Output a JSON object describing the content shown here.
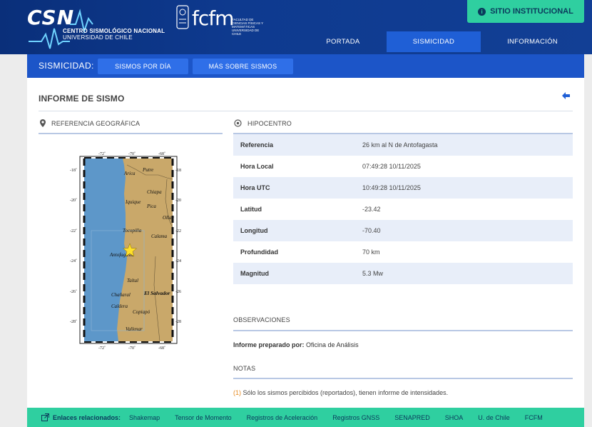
{
  "header": {
    "logo_text": "CSN",
    "logo_line1": "CENTRO SISMOLÓGICO NACIONAL",
    "logo_line2": "UNIVERSIDAD DE CHILE",
    "fcfm_text": "fcfm",
    "fcfm_subtitle": "FACULTAD DE CIENCIAS FÍSICAS Y MATEMÁTICAS UNIVERSIDAD DE CHILE",
    "institutional_button": "SITIO INSTITUCIONAL",
    "nav": [
      {
        "label": "PORTADA",
        "active": false
      },
      {
        "label": "SISMICIDAD",
        "active": true
      },
      {
        "label": "INFORMACIÓN",
        "active": false
      }
    ]
  },
  "subnav": {
    "label": "SISMICIDAD:",
    "buttons": [
      "SISMOS POR DÍA",
      "MÁS SOBRE SISMOS"
    ]
  },
  "report": {
    "title": "INFORME DE SISMO",
    "geo_ref_heading": "REFERENCIA GEOGRÁFICA",
    "hypocenter_heading": "HIPOCENTRO",
    "rows": [
      {
        "key": "Referencia",
        "value": "26 km al N de Antofagasta"
      },
      {
        "key": "Hora Local",
        "value": "07:49:28 10/11/2025"
      },
      {
        "key": "Hora UTC",
        "value": "10:49:28 10/11/2025"
      },
      {
        "key": "Latitud",
        "value": "-23.42"
      },
      {
        "key": "Longitud",
        "value": "-70.40"
      },
      {
        "key": "Profundidad",
        "value": "70 km"
      },
      {
        "key": "Magnitud",
        "value": "5.3 Mw"
      }
    ],
    "observations_heading": "OBSERVACIONES",
    "prepared_label": "Informe preparado por:",
    "prepared_value": "Oficina de Análisis",
    "notes_heading": "NOTAS",
    "note_number": "(1)",
    "note_text": "Sólo los sismos percibidos (reportados), tienen informe de intensidades."
  },
  "map": {
    "lon_ticks": [
      "-72˚",
      "-70˚",
      "-68˚"
    ],
    "lat_ticks": [
      "-18˚",
      "-20˚",
      "-22˚",
      "-24˚",
      "-26˚",
      "-28˚"
    ],
    "places": [
      "Arica",
      "Putre",
      "Chiapa",
      "Iquique",
      "Pica",
      "Ollag",
      "Tocopilla",
      "Calama",
      "Antofagasta",
      "Taltal",
      "Chañaral",
      "El Salvador",
      "Caldera",
      "Copiapó",
      "Vallenar"
    ],
    "ocean_color": "#5d97c9",
    "land_color": "#c9a86a",
    "epicenter_color": "#ffe02a"
  },
  "footer": {
    "label": "Enlaces relacionados:",
    "links": [
      "Shakemap",
      "Tensor de Momento",
      "Registros de Aceleración",
      "Registros GNSS",
      "SENAPRED",
      "SHOA",
      "U. de Chile",
      "FCFM"
    ]
  },
  "colors": {
    "header_blue": "#0e3a8f",
    "accent_blue": "#1f5fd6",
    "green": "#2fcfa0",
    "note_orange": "#e6891e"
  }
}
